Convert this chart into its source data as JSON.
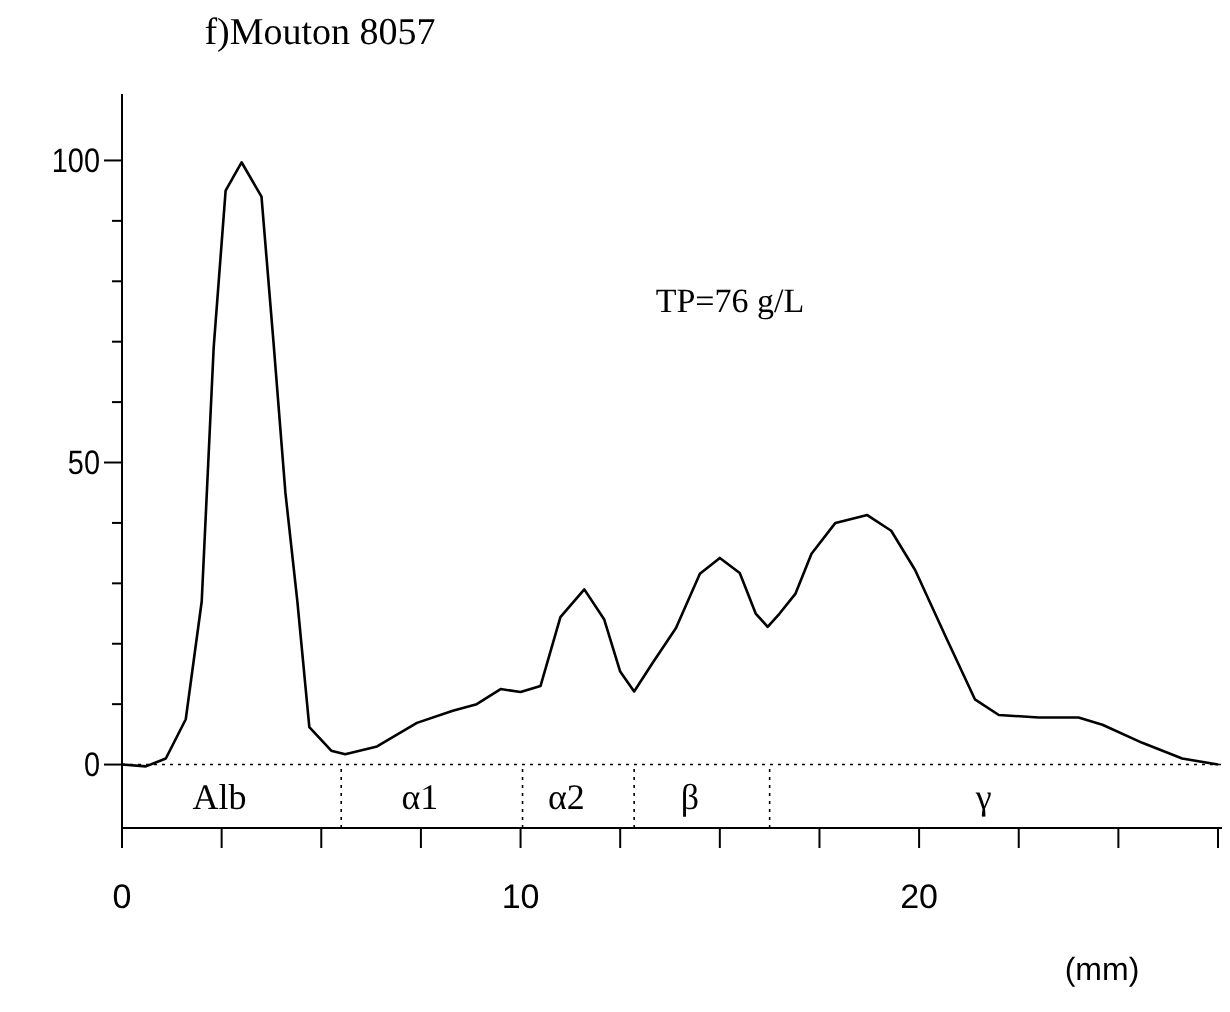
{
  "chart_data": {
    "type": "line",
    "title": "f)Mouton 8057",
    "xlabel": "(mm)",
    "x": [
      0,
      0.6,
      1.1,
      1.6,
      2.0,
      2.3,
      2.6,
      3.0,
      3.5,
      3.8,
      4.1,
      4.4,
      4.7,
      5.25,
      5.6,
      6.4,
      7.4,
      8.3,
      8.9,
      9.5,
      10.0,
      10.5,
      11.0,
      11.6,
      12.1,
      12.5,
      12.85,
      13.3,
      13.9,
      14.5,
      15.0,
      15.5,
      15.9,
      16.2,
      16.5,
      16.9,
      17.3,
      17.9,
      18.7,
      19.3,
      19.9,
      20.7,
      21.4,
      22.0,
      23.0,
      24.0,
      24.6,
      25.6,
      26.6,
      27.5
    ],
    "series": [
      {
        "color": "#000000",
        "values": [
          0,
          -0.3,
          1,
          7.5,
          27,
          69,
          95,
          99.7,
          94,
          70,
          45,
          27,
          6.2,
          2.3,
          1.7,
          3,
          6.9,
          8.9,
          10,
          12.5,
          12,
          13,
          24.4,
          29,
          24,
          15.4,
          12.1,
          16.7,
          22.6,
          31.6,
          34.2,
          31.7,
          25,
          22.8,
          25,
          28.3,
          34.9,
          40,
          41.3,
          38.7,
          32.2,
          20.7,
          10.8,
          8.2,
          7.8,
          7.8,
          6.6,
          3.6,
          1,
          0
        ]
      }
    ],
    "xlim": [
      0,
      27.6
    ],
    "ylim": [
      -10.5,
      111
    ],
    "xticks": [
      0,
      {
        "value": 2.5,
        "label": null
      },
      {
        "value": 5,
        "label": null
      },
      {
        "value": 7.5,
        "label": null
      },
      10,
      {
        "value": 12.5,
        "label": null
      },
      {
        "value": 15,
        "label": null
      },
      {
        "value": 17.5,
        "label": null
      },
      20,
      {
        "value": 22.5,
        "label": null
      },
      {
        "value": 25,
        "label": null
      },
      {
        "value": 27.5,
        "label": null
      }
    ],
    "yticks": [
      0,
      {
        "value": 10,
        "label": null
      },
      {
        "value": 20,
        "label": null
      },
      {
        "value": 30,
        "label": null
      },
      {
        "value": 40,
        "label": null
      },
      50,
      {
        "value": 60,
        "label": null
      },
      {
        "value": 70,
        "label": null
      },
      {
        "value": 80,
        "label": null
      },
      {
        "value": 90,
        "label": null
      },
      100
    ],
    "ref_lines": [
      {
        "axis": "y",
        "value": 0,
        "line_style": "dotted"
      },
      {
        "axis": "x",
        "value": 5.5,
        "line_style": "dotted"
      },
      {
        "axis": "x",
        "value": 10.05,
        "line_style": "dotted"
      },
      {
        "axis": "x",
        "value": 12.85,
        "line_style": "dotted"
      },
      {
        "axis": "x",
        "value": 16.25,
        "line_style": "dotted"
      }
    ],
    "annotations": [
      "TP=76 g/L",
      "Alb",
      "α1",
      "α2",
      "β",
      "γ"
    ],
    "grid": false,
    "marker": "none",
    "line_style": "solid"
  }
}
